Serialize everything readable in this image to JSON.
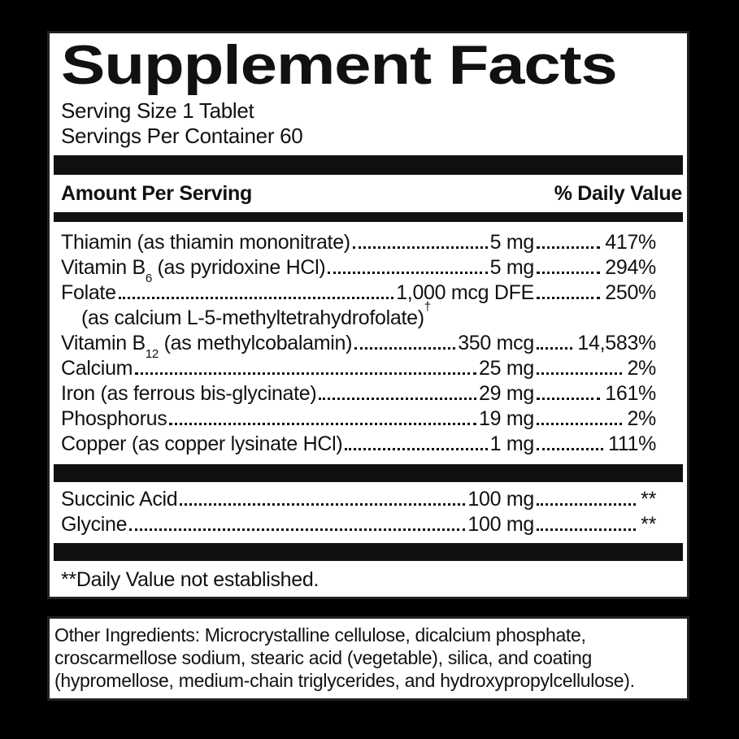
{
  "title": "Supplement Facts",
  "serving": {
    "size": "Serving Size 1 Tablet",
    "per_container": "Servings Per Container 60"
  },
  "header": {
    "amount": "Amount Per Serving",
    "dv": "% Daily Value"
  },
  "facts": {
    "rows": [
      {
        "name": "Thiamin (as thiamin mononitrate) ",
        "amount": "5 mg",
        "dv": "417%"
      },
      {
        "name": "Vitamin B",
        "sub": "6",
        "rest": " (as pyridoxine HCl)",
        "amount": "5 mg",
        "dv": "294%"
      },
      {
        "name": "Folate",
        "amount": "1,000 mcg DFE",
        "dv": "250%"
      },
      {
        "name": "(as calcium L-5-methyltetrahydrofolate)",
        "sup": "†",
        "indent": true
      },
      {
        "name": "Vitamin B",
        "sub": "12",
        "rest": " (as methylcobalamin)",
        "amount": "350 mcg",
        "dv": "14,583%"
      },
      {
        "name": "Calcium",
        "amount": "25 mg",
        "dv": "2%"
      },
      {
        "name": "Iron (as ferrous bis-glycinate)",
        "amount": "29 mg",
        "dv": "161%"
      },
      {
        "name": "Phosphorus",
        "amount": "19 mg",
        "dv": "2%"
      },
      {
        "name": "Copper (as copper lysinate HCl) ",
        "amount": "1 mg",
        "dv": "111%"
      }
    ],
    "other_rows": [
      {
        "name": "Succinic Acid ",
        "amount": "100 mg",
        "dv": "**"
      },
      {
        "name": "Glycine",
        "amount": "100 mg",
        "dv": "**"
      }
    ]
  },
  "footnote": "**Daily Value not established.",
  "other_ingredients": {
    "lines": [
      "Other Ingredients: Microcrystalline cellulose, dicalcium phosphate,",
      "croscarmellose sodium, stearic acid (vegetable), silica, and coating",
      "(hypromellose, medium-chain triglycerides, and hydroxypropylcellulose)."
    ]
  },
  "colors": {
    "background": "#000000",
    "panel": "#ffffff",
    "ink": "#111111",
    "bar": "#101010"
  }
}
